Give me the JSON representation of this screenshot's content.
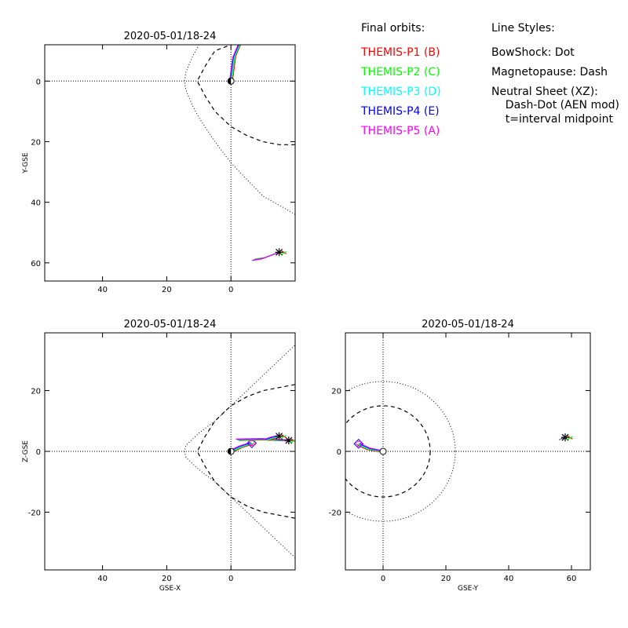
{
  "chart_data": [
    {
      "type": "line",
      "title": "2020-05-01/18-24",
      "xlabel": "",
      "ylabel": "Y-GSE",
      "xlim": [
        58,
        -20
      ],
      "ylim": [
        -12,
        66
      ],
      "x_inverted": true,
      "y_inverted": true,
      "xticks": [
        40,
        20,
        0
      ],
      "yticks": [
        0,
        20,
        40,
        60
      ],
      "bowshock": {
        "x": [
          -20,
          -10,
          0,
          5,
          10,
          12,
          14,
          14.5,
          14,
          12,
          10,
          5,
          0
        ],
        "y": [
          44,
          38,
          27,
          20,
          12,
          8,
          3,
          0,
          -3,
          -8,
          -12,
          -20,
          -27
        ]
      },
      "magnetopause": {
        "x": [
          -20,
          -15,
          -10,
          -5,
          0,
          5,
          8,
          10,
          10.5,
          10,
          8,
          5,
          0
        ],
        "y": [
          21,
          21,
          20,
          18,
          15,
          10,
          5,
          1,
          0,
          -1,
          -5,
          -10,
          -12
        ]
      },
      "orbits": [
        {
          "x": [
            0,
            -1,
            -3,
            -5,
            -6.5
          ],
          "y": [
            0,
            -8,
            -13,
            -15.5,
            -16.5
          ]
        },
        {
          "x": [
            -7,
            -10,
            -13,
            -15
          ],
          "y": [
            59,
            58.5,
            57.3,
            56.5
          ]
        }
      ]
    },
    {
      "type": "line",
      "title": "2020-05-01/18-24",
      "xlabel": "GSE-X",
      "ylabel": "Z-GSE",
      "xlim": [
        58,
        -20
      ],
      "ylim": [
        -39,
        39
      ],
      "x_inverted": true,
      "xticks": [
        40,
        20,
        0
      ],
      "yticks": [
        -20,
        0,
        20
      ],
      "bowshock": {
        "x": [
          -20,
          -15,
          -10,
          -5,
          0,
          5,
          10,
          12,
          14,
          14.5,
          14,
          12,
          10,
          5,
          0,
          -5,
          -10,
          -15,
          -20
        ],
        "y": [
          -35,
          -30,
          -25,
          -20,
          -15,
          -10,
          -6,
          -4,
          -2,
          0,
          2,
          4,
          6,
          10,
          15,
          20,
          25,
          30,
          35
        ]
      },
      "magnetopause": {
        "x": [
          -20,
          -15,
          -10,
          -5,
          0,
          5,
          8,
          10,
          10.5,
          10,
          8,
          5,
          0,
          -5,
          -10,
          -15,
          -20
        ],
        "y": [
          -22,
          -21,
          -20,
          -18,
          -15,
          -10,
          -5,
          -1,
          0,
          1,
          5,
          10,
          15,
          18,
          20,
          21,
          22
        ]
      },
      "orbits": [
        {
          "x": [
            0,
            -3,
            -6.5
          ],
          "y": [
            0,
            1.5,
            2.7
          ]
        },
        {
          "x": [
            -2,
            -10,
            -18
          ],
          "y": [
            3.8,
            4.0,
            3.6
          ]
        },
        {
          "x": [
            -11,
            -13,
            -15
          ],
          "y": [
            3.8,
            4.5,
            5.0
          ]
        }
      ]
    },
    {
      "type": "line",
      "title": "2020-05-01/18-24",
      "xlabel": "GSE-Y",
      "ylabel": "",
      "xlim": [
        -12,
        66
      ],
      "ylim": [
        -39,
        39
      ],
      "xticks": [
        0,
        20,
        40,
        60
      ],
      "yticks": [
        -20,
        0,
        20
      ],
      "bowshock_circle_radius": 23,
      "magnetopause_circle_radius": 15,
      "orbits": [
        {
          "x": [
            0,
            -2,
            -4.5,
            -6.5,
            -7.8
          ],
          "y": [
            0,
            0.3,
            0.8,
            1.7,
            2.5
          ]
        },
        {
          "x": [
            56.5,
            57.2,
            58
          ],
          "y": [
            4.1,
            4.3,
            4.6
          ]
        }
      ]
    }
  ],
  "legend": {
    "heading": "Final orbits:",
    "items": [
      {
        "label": "THEMIS-P1 (B)",
        "color": "#ff0000"
      },
      {
        "label": "THEMIS-P2 (C)",
        "color": "#00ff00"
      },
      {
        "label": "THEMIS-P3 (D)",
        "color": "#00ffff"
      },
      {
        "label": "THEMIS-P4 (E)",
        "color": "#0000ff"
      },
      {
        "label": "THEMIS-P5 (A)",
        "color": "#ff00ff"
      }
    ]
  },
  "line_styles": {
    "heading": "Line Styles:",
    "lines": [
      "BowShock: Dot",
      "Magnetopause: Dash",
      "Neutral Sheet (XZ):",
      "  Dash-Dot (AEN mod)",
      "  t=interval midpoint"
    ]
  }
}
